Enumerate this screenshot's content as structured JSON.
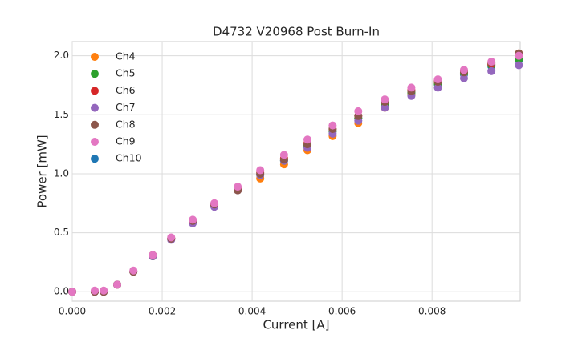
{
  "chart_data": {
    "type": "scatter",
    "title": "D4732 V20968 Post Burn-In",
    "x_label": "Current [A]",
    "y_label": "Power [mW]",
    "x": [
      0,
      0.0005,
      0.0007,
      0.001,
      0.00136,
      0.00179,
      0.0022,
      0.00268,
      0.00316,
      0.00368,
      0.00418,
      0.00471,
      0.00523,
      0.00579,
      0.00636,
      0.00695,
      0.00754,
      0.00813,
      0.00871,
      0.00932,
      0.00993
    ],
    "series": [
      {
        "name": "Ch4",
        "color": "#ff7f0e",
        "values": [
          0,
          0,
          0,
          0.06,
          0.17,
          0.3,
          0.45,
          0.59,
          0.73,
          0.86,
          0.96,
          1.08,
          1.2,
          1.32,
          1.43,
          1.56,
          1.67,
          1.77,
          1.85,
          1.93,
          2.02
        ]
      },
      {
        "name": "Ch5",
        "color": "#2ca02c",
        "values": [
          0,
          0,
          0,
          0.06,
          0.17,
          0.3,
          0.45,
          0.59,
          0.73,
          0.87,
          0.99,
          1.11,
          1.24,
          1.36,
          1.47,
          1.58,
          1.69,
          1.76,
          1.85,
          1.92,
          1.97
        ]
      },
      {
        "name": "Ch6",
        "color": "#d62728",
        "values": [
          0,
          0,
          0,
          0.06,
          0.17,
          0.31,
          0.45,
          0.6,
          0.74,
          0.87,
          1.01,
          1.13,
          1.26,
          1.38,
          1.49,
          1.61,
          1.71,
          1.79,
          1.87,
          1.93,
          2.02
        ]
      },
      {
        "name": "Ch7",
        "color": "#9467bd",
        "values": [
          0,
          0,
          0,
          0.06,
          0.17,
          0.3,
          0.44,
          0.58,
          0.72,
          0.86,
          0.99,
          1.11,
          1.22,
          1.34,
          1.45,
          1.56,
          1.66,
          1.73,
          1.81,
          1.87,
          1.92
        ]
      },
      {
        "name": "Ch8",
        "color": "#8c564b",
        "values": [
          0,
          0,
          0,
          0.06,
          0.17,
          0.31,
          0.45,
          0.6,
          0.74,
          0.86,
          1.0,
          1.12,
          1.25,
          1.38,
          1.49,
          1.61,
          1.7,
          1.78,
          1.86,
          1.94,
          2.02
        ]
      },
      {
        "name": "Ch9",
        "color": "#e377c2",
        "values": [
          0,
          0.01,
          0.01,
          0.06,
          0.18,
          0.31,
          0.46,
          0.61,
          0.75,
          0.89,
          1.03,
          1.16,
          1.29,
          1.41,
          1.53,
          1.63,
          1.73,
          1.8,
          1.88,
          1.95,
          2.0
        ]
      },
      {
        "name": "Ch10",
        "color": "#1f77b4",
        "values": [
          0,
          0,
          0,
          0.06,
          0.17,
          0.3,
          0.45,
          0.59,
          0.73,
          0.86,
          0.99,
          1.11,
          1.23,
          1.36,
          1.47,
          1.58,
          1.68,
          1.76,
          1.84,
          1.91,
          1.96
        ]
      }
    ],
    "xlim": [
      0,
      0.00996
    ],
    "ylim": [
      -0.08,
      2.12
    ],
    "xticks": [
      {
        "value": 0,
        "label": "0.000"
      },
      {
        "value": 0.002,
        "label": "0.002"
      },
      {
        "value": 0.004,
        "label": "0.004"
      },
      {
        "value": 0.006,
        "label": "0.006"
      },
      {
        "value": 0.008,
        "label": "0.008"
      }
    ],
    "yticks": [
      {
        "value": 0,
        "label": "0.0"
      },
      {
        "value": 0.5,
        "label": "0.5"
      },
      {
        "value": 1,
        "label": "1.0"
      },
      {
        "value": 1.5,
        "label": "1.5"
      },
      {
        "value": 2,
        "label": "2.0"
      }
    ],
    "grid": true,
    "legend": "upper-left"
  }
}
